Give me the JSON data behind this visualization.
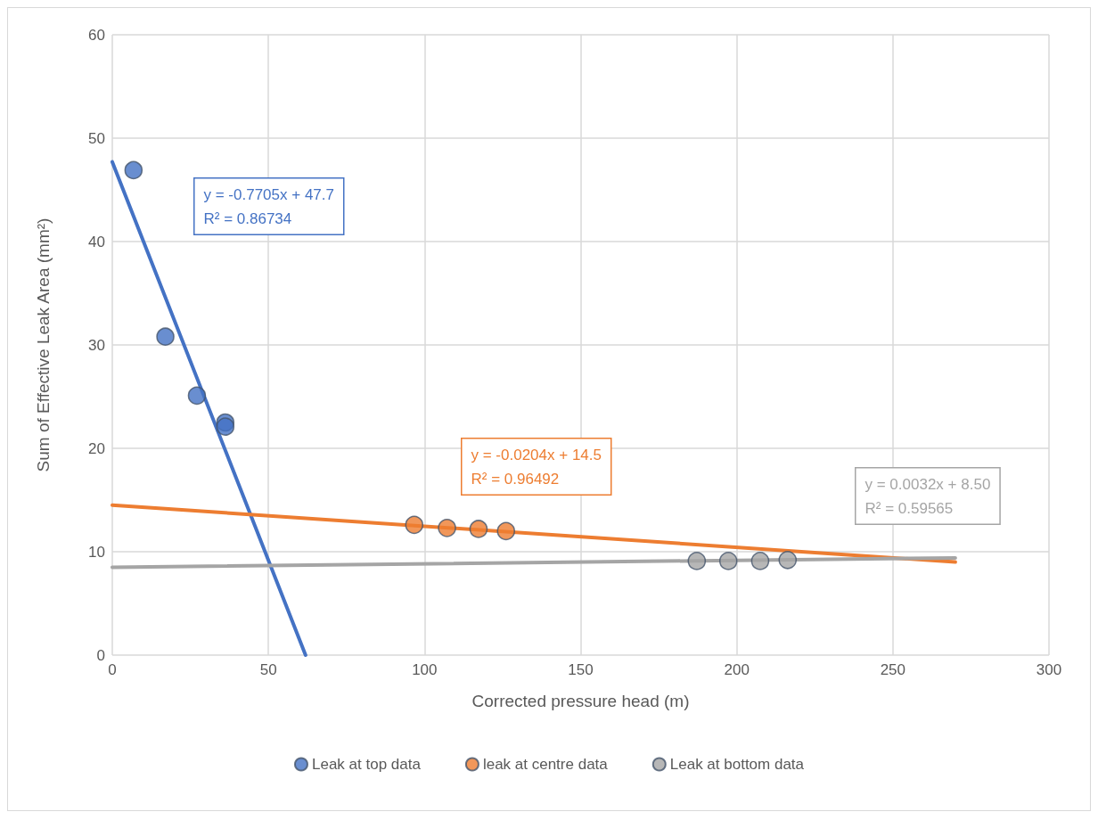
{
  "chart_data": {
    "type": "scatter",
    "xlabel": "Corrected pressure head (m)",
    "ylabel": "Sum of Effective Leak Area (mm²)",
    "xlim": [
      0,
      300
    ],
    "xticks": [
      0,
      50,
      100,
      150,
      200,
      250,
      300
    ],
    "ylim": [
      0,
      60
    ],
    "yticks": [
      0,
      10,
      20,
      30,
      40,
      50,
      60
    ],
    "grid": true,
    "legend": "bottom",
    "marker": "circle",
    "series": [
      {
        "name": "Leak at top data",
        "color": "#4472c4",
        "x": [
          6.8,
          17,
          27.1,
          36.2,
          36.2
        ],
        "values": [
          46.9,
          30.8,
          25.1,
          22.5,
          22.1
        ]
      },
      {
        "name": "leak at centre data",
        "color": "#ed7d31",
        "x": [
          96.7,
          107.2,
          117.3,
          126.1
        ],
        "values": [
          12.6,
          12.3,
          12.2,
          12.0
        ]
      },
      {
        "name": "Leak at bottom data",
        "color": "#a5a5a5",
        "x": [
          187.2,
          197.3,
          207.5,
          216.3
        ],
        "values": [
          9.1,
          9.1,
          9.1,
          9.2
        ]
      },
      {
        "type": "line",
        "color": "#4472c4",
        "x": [
          0,
          61.9
        ],
        "values": [
          47.7,
          0
        ],
        "marker": "none"
      },
      {
        "type": "line",
        "color": "#ed7d31",
        "x": [
          0,
          270
        ],
        "values": [
          14.5,
          9.0
        ],
        "marker": "none"
      },
      {
        "type": "line",
        "color": "#a5a5a5",
        "x": [
          0,
          270
        ],
        "values": [
          8.5,
          9.4
        ],
        "marker": "none"
      }
    ],
    "annotations": [
      "y = -0.7705x + 47.7\nR² = 0.86734",
      "y = -0.0204x + 14.5\nR² = 0.96492",
      "y = 0.0032x + 8.50\nR² = 0.59565"
    ]
  }
}
